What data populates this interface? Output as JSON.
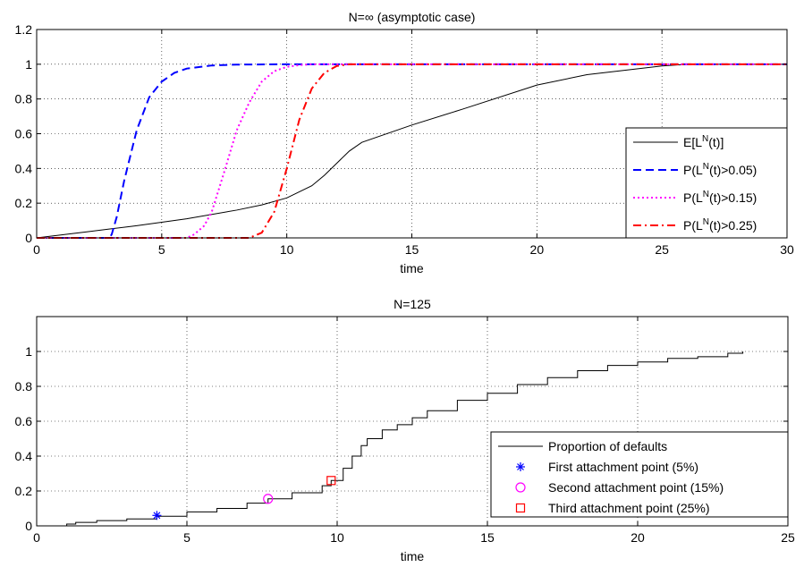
{
  "chart_data": [
    {
      "type": "line",
      "title": "N=∞ (asymptotic case)",
      "xlabel": "time",
      "ylabel": "",
      "xlim": [
        0,
        30
      ],
      "ylim": [
        0,
        1.2
      ],
      "xticks": [
        "0",
        "5",
        "10",
        "15",
        "20",
        "25",
        "30"
      ],
      "yticks": [
        "0",
        "0.2",
        "0.4",
        "0.6",
        "0.8",
        "1",
        "1.2"
      ],
      "grid": true,
      "legend_position": "bottom-right",
      "series": [
        {
          "name_main": "E[L",
          "name_sup": "N",
          "name_tail": "(t)]",
          "color": "#000000",
          "style": "solid",
          "x": [
            0,
            2,
            4,
            6,
            8,
            9,
            10,
            11,
            11.5,
            12,
            12.5,
            13,
            15,
            17,
            20,
            22,
            25,
            26,
            28,
            30
          ],
          "y": [
            0,
            0.035,
            0.07,
            0.11,
            0.16,
            0.19,
            0.23,
            0.3,
            0.36,
            0.43,
            0.5,
            0.55,
            0.65,
            0.74,
            0.88,
            0.94,
            0.99,
            1.0,
            1.0,
            1.0
          ]
        },
        {
          "name_main": "P(L",
          "name_sup": "N",
          "name_tail": "(t)>0.05)",
          "color": "#0000ff",
          "style": "dashed",
          "x": [
            0,
            2.9,
            3.0,
            3.2,
            3.5,
            4.0,
            4.5,
            5.0,
            5.5,
            6.0,
            7.0,
            8.0,
            10.0,
            15.0,
            20.0,
            30.0
          ],
          "y": [
            0,
            0,
            0.02,
            0.12,
            0.33,
            0.62,
            0.81,
            0.9,
            0.95,
            0.975,
            0.993,
            0.998,
            1.0,
            1.0,
            1.0,
            1.0
          ]
        },
        {
          "name_main": "P(L",
          "name_sup": "N",
          "name_tail": "(t)>0.15)",
          "color": "#ff00ff",
          "style": "dotted",
          "x": [
            0,
            6.0,
            6.3,
            6.7,
            7.0,
            7.5,
            8.0,
            8.5,
            9.0,
            9.5,
            10.0,
            10.5,
            11.0,
            15.0,
            20.0,
            30.0
          ],
          "y": [
            0,
            0,
            0.02,
            0.07,
            0.15,
            0.38,
            0.62,
            0.78,
            0.9,
            0.96,
            0.985,
            0.995,
            1.0,
            1.0,
            1.0,
            1.0
          ]
        },
        {
          "name_main": "P(L",
          "name_sup": "N",
          "name_tail": "(t)>0.25)",
          "color": "#ff0000",
          "style": "dashdot",
          "x": [
            0,
            8.5,
            9.0,
            9.5,
            10.0,
            10.5,
            11.0,
            11.5,
            12.0,
            12.5,
            13.0,
            15.0,
            20.0,
            30.0
          ],
          "y": [
            0,
            0,
            0.03,
            0.15,
            0.4,
            0.68,
            0.86,
            0.95,
            0.99,
            1.0,
            1.0,
            1.0,
            1.0,
            1.0
          ]
        }
      ]
    },
    {
      "type": "line",
      "title": "N=125",
      "xlabel": "time",
      "ylabel": "",
      "xlim": [
        0,
        25
      ],
      "ylim": [
        0,
        1.2
      ],
      "xticks": [
        "0",
        "5",
        "10",
        "15",
        "20",
        "25"
      ],
      "yticks": [
        "0",
        "0.2",
        "0.4",
        "0.6",
        "0.8",
        "1"
      ],
      "grid": true,
      "legend_position": "bottom-right",
      "series": [
        {
          "name": "Proportion of defaults",
          "color": "#000000",
          "style": "step",
          "x": [
            0,
            0.5,
            1.0,
            1.3,
            2.0,
            3.0,
            4.0,
            5.0,
            6.0,
            7.0,
            7.7,
            8.5,
            9.5,
            9.8,
            10.2,
            10.5,
            10.8,
            11.0,
            11.5,
            12.0,
            12.5,
            13.0,
            14.0,
            15.0,
            16.0,
            17.0,
            18.0,
            19.0,
            20.0,
            21.0,
            22.0,
            23.0,
            23.5
          ],
          "y": [
            0,
            0.0,
            0.01,
            0.02,
            0.03,
            0.04,
            0.055,
            0.08,
            0.1,
            0.13,
            0.155,
            0.19,
            0.23,
            0.26,
            0.33,
            0.4,
            0.46,
            0.5,
            0.55,
            0.58,
            0.62,
            0.66,
            0.72,
            0.76,
            0.81,
            0.85,
            0.89,
            0.92,
            0.94,
            0.96,
            0.97,
            0.99,
            1.0
          ]
        },
        {
          "name": "First attachment point (5%)",
          "color": "#0000ff",
          "marker": "star",
          "x": [
            4.0
          ],
          "y": [
            0.06
          ]
        },
        {
          "name": "Second attachment point (15%)",
          "color": "#ff00ff",
          "marker": "circle",
          "x": [
            7.7
          ],
          "y": [
            0.155
          ]
        },
        {
          "name": "Third attachment point (25%)",
          "color": "#ff0000",
          "marker": "square",
          "x": [
            9.8
          ],
          "y": [
            0.26
          ]
        }
      ]
    }
  ]
}
